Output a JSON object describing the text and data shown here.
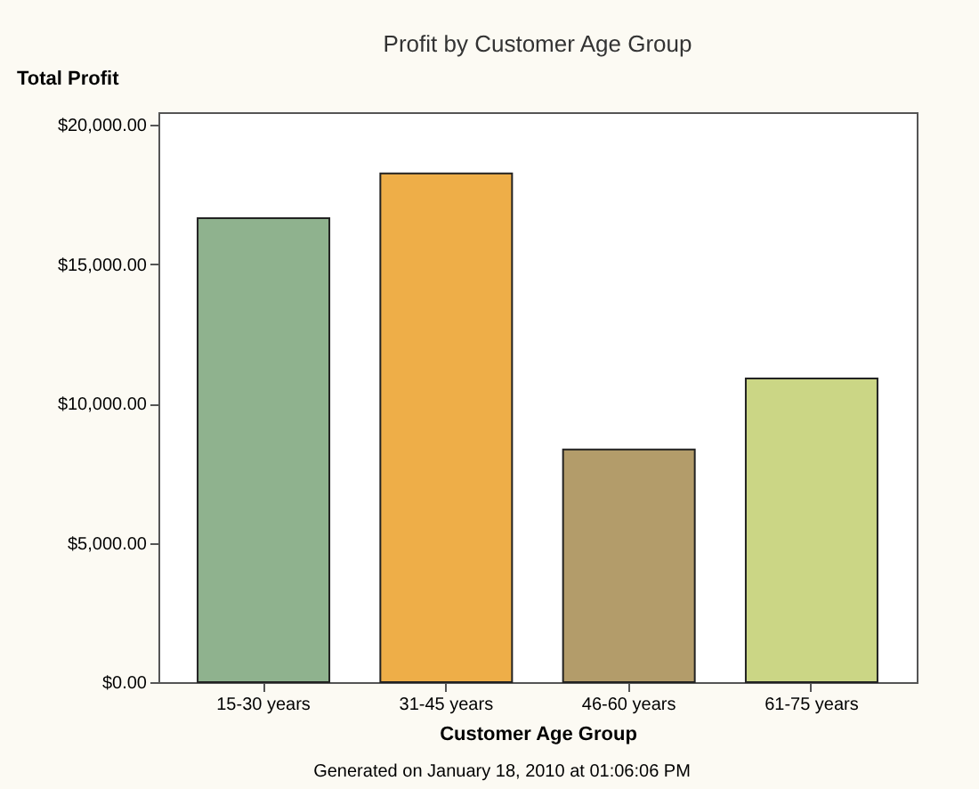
{
  "chart_data": {
    "type": "bar",
    "title": "Profit by Customer Age Group",
    "xlabel": "Customer Age Group",
    "ylabel": "Total Profit",
    "categories": [
      "15-30 years",
      "31-45 years",
      "46-60 years",
      "61-75 years"
    ],
    "values": [
      16650,
      18250,
      8350,
      10900
    ],
    "colors": [
      "#8fb28e",
      "#eeae48",
      "#b39c6a",
      "#cbd685"
    ],
    "ylim": [
      0,
      20450
    ],
    "yticks": [
      {
        "value": 0,
        "label": "$0.00"
      },
      {
        "value": 5000,
        "label": "$5,000.00"
      },
      {
        "value": 10000,
        "label": "$10,000.00"
      },
      {
        "value": 15000,
        "label": "$15,000.00"
      },
      {
        "value": 20000,
        "label": "$20,000.00"
      }
    ],
    "grid": false,
    "annotations": [
      "Generated on January 18, 2010 at 01:06:06 PM"
    ]
  }
}
